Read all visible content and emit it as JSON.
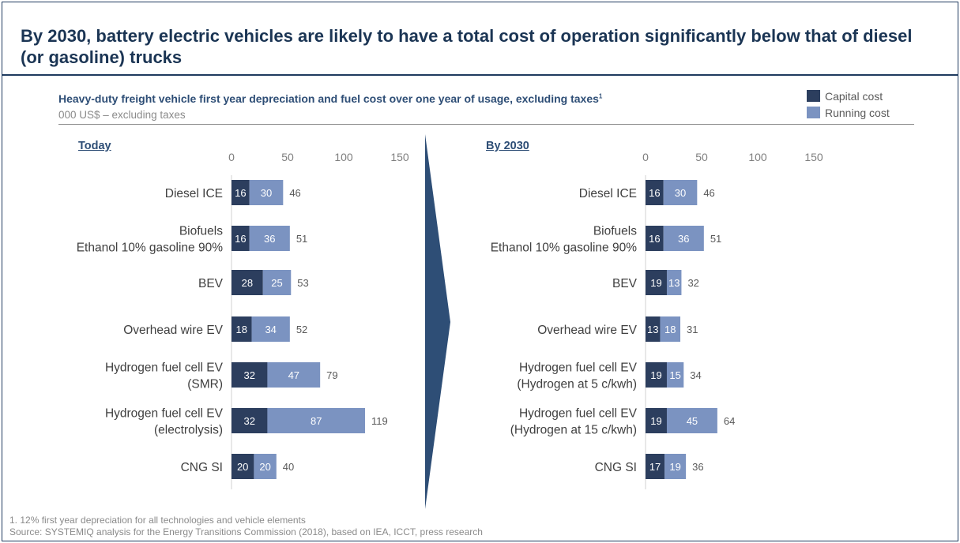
{
  "title": "By 2030, battery electric vehicles are likely to have a total cost of operation significantly below that of diesel (or gasoline) trucks",
  "subtitle": "Heavy-duty freight vehicle first year depreciation and fuel cost over one year of usage, excluding taxes",
  "subtitle_footnote_mark": "1",
  "units": "000 US$ – excluding taxes",
  "legend": [
    {
      "label": "Capital cost",
      "color": "#2c3e5e"
    },
    {
      "label": "Running cost",
      "color": "#7b93c1"
    }
  ],
  "footnotes": {
    "note1": "1. 12% first year depreciation for all technologies and vehicle elements",
    "source": "Source: SYSTEMIQ analysis for the Energy Transitions Commission (2018), based on IEA, ICCT, press research"
  },
  "arrow_color": "#2e4e76",
  "chart_data": [
    {
      "type": "bar",
      "stacked": true,
      "orientation": "horizontal",
      "panel_title": "Today",
      "xlim": [
        0,
        150
      ],
      "x_ticks": [
        0,
        50,
        100,
        150
      ],
      "categories": [
        [
          "Diesel ICE"
        ],
        [
          "Biofuels",
          "Ethanol 10% gasoline 90%"
        ],
        [
          "BEV"
        ],
        [
          "Overhead wire EV"
        ],
        [
          "Hydrogen fuel cell EV",
          "(SMR)"
        ],
        [
          "Hydrogen fuel cell EV",
          "(electrolysis)"
        ],
        [
          "CNG SI"
        ]
      ],
      "series": [
        {
          "name": "Capital cost",
          "values": [
            16,
            16,
            28,
            18,
            32,
            32,
            20
          ]
        },
        {
          "name": "Running cost",
          "values": [
            30,
            36,
            25,
            34,
            47,
            87,
            20
          ]
        }
      ],
      "totals": [
        46,
        51,
        53,
        52,
        79,
        119,
        40
      ]
    },
    {
      "type": "bar",
      "stacked": true,
      "orientation": "horizontal",
      "panel_title": "By 2030",
      "xlim": [
        0,
        150
      ],
      "x_ticks": [
        0,
        50,
        100,
        150
      ],
      "categories": [
        [
          "Diesel ICE"
        ],
        [
          "Biofuels",
          "Ethanol 10% gasoline 90%"
        ],
        [
          "BEV"
        ],
        [
          "Overhead wire EV"
        ],
        [
          "Hydrogen fuel cell EV",
          "(Hydrogen at 5 c/kwh)"
        ],
        [
          "Hydrogen fuel cell EV",
          "(Hydrogen at 15 c/kwh)"
        ],
        [
          "CNG SI"
        ]
      ],
      "series": [
        {
          "name": "Capital cost",
          "values": [
            16,
            16,
            19,
            13,
            19,
            19,
            17
          ]
        },
        {
          "name": "Running cost",
          "values": [
            30,
            36,
            13,
            18,
            15,
            45,
            19
          ]
        }
      ],
      "totals": [
        46,
        51,
        32,
        31,
        34,
        64,
        36
      ]
    }
  ]
}
